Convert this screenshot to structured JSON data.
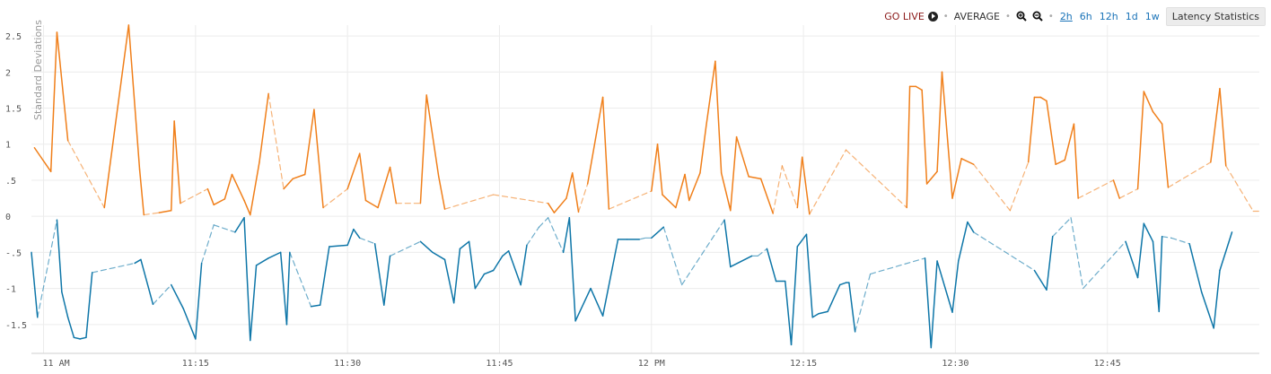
{
  "toolbar": {
    "go_live": "GO LIVE",
    "average": "AVERAGE",
    "ranges": [
      "2h",
      "6h",
      "12h",
      "1d",
      "1w"
    ],
    "active_range": "2h",
    "latency_button": "Latency Statistics"
  },
  "colors": {
    "upper_series": "#f07f1a",
    "lower_series": "#0e76a8",
    "go_live": "#8b1a1a",
    "link": "#1a73b8",
    "grid": "#ececec"
  },
  "chart_data": {
    "type": "line",
    "ylabel": "Standard Deviations",
    "ylim": [
      -1.9,
      2.65
    ],
    "yticks": [
      2.5,
      2,
      1.5,
      1,
      0.5,
      0,
      -0.5,
      -1,
      -1.5
    ],
    "ytick_labels": [
      "2.5",
      "2",
      "1.5",
      "1",
      ".5",
      "0",
      "-.5",
      "-1",
      "-1.5"
    ],
    "xlim": [
      -2,
      200
    ],
    "xticks": [
      0,
      25,
      50,
      75,
      100,
      125,
      150,
      175
    ],
    "xtick_labels": [
      "11 AM",
      "11:15",
      "11:30",
      "11:45",
      "12 PM",
      "12:15",
      "12:30",
      "12:45"
    ],
    "grid": true,
    "series": [
      {
        "color": "#f07f1a",
        "points": [
          [
            -1.5,
            0.95,
            "d"
          ],
          [
            1.2,
            0.62,
            "s"
          ],
          [
            2.2,
            2.55,
            "s"
          ],
          [
            4,
            1.05,
            "s"
          ],
          [
            10,
            0.12,
            "d"
          ],
          [
            11.7,
            1.2,
            "s"
          ],
          [
            14,
            2.65,
            "s"
          ],
          [
            15.8,
            0.65,
            "s"
          ],
          [
            16.5,
            0.02,
            "s"
          ],
          [
            19,
            0.05,
            "d"
          ],
          [
            21,
            0.08,
            "s"
          ],
          [
            21.5,
            1.32,
            "s"
          ],
          [
            22.5,
            0.18,
            "s"
          ],
          [
            27,
            0.38,
            "d"
          ],
          [
            28,
            0.16,
            "s"
          ],
          [
            29.8,
            0.24,
            "s"
          ],
          [
            31,
            0.58,
            "s"
          ],
          [
            33,
            0.22,
            "s"
          ],
          [
            34,
            0.02,
            "s"
          ],
          [
            35.5,
            0.75,
            "s"
          ],
          [
            37,
            1.7,
            "s"
          ],
          [
            39.5,
            0.38,
            "d"
          ],
          [
            41,
            0.52,
            "s"
          ],
          [
            43,
            0.58,
            "s"
          ],
          [
            44.5,
            1.48,
            "s"
          ],
          [
            46,
            0.12,
            "s"
          ],
          [
            50,
            0.38,
            "d"
          ],
          [
            52,
            0.87,
            "s"
          ],
          [
            53,
            0.22,
            "s"
          ],
          [
            55,
            0.12,
            "s"
          ],
          [
            57,
            0.68,
            "s"
          ],
          [
            58,
            0.18,
            "s"
          ],
          [
            62,
            0.18,
            "d"
          ],
          [
            63,
            1.68,
            "s"
          ],
          [
            65,
            0.55,
            "s"
          ],
          [
            66,
            0.1,
            "s"
          ],
          [
            74,
            0.3,
            "d"
          ],
          [
            83,
            0.18,
            "d"
          ],
          [
            84,
            0.05,
            "s"
          ],
          [
            86,
            0.25,
            "s"
          ],
          [
            87,
            0.6,
            "s"
          ],
          [
            88,
            0.06,
            "s"
          ],
          [
            89.5,
            0.45,
            "d"
          ],
          [
            92,
            1.65,
            "s"
          ],
          [
            93,
            0.1,
            "s"
          ],
          [
            100,
            0.35,
            "d"
          ],
          [
            101,
            1.0,
            "s"
          ],
          [
            101.8,
            0.3,
            "s"
          ],
          [
            104,
            0.12,
            "s"
          ],
          [
            105.5,
            0.58,
            "s"
          ],
          [
            106.2,
            0.22,
            "s"
          ],
          [
            108,
            0.6,
            "s"
          ],
          [
            109,
            1.25,
            "s"
          ],
          [
            110.5,
            2.15,
            "s"
          ],
          [
            111.5,
            0.6,
            "s"
          ],
          [
            113,
            0.08,
            "s"
          ],
          [
            114,
            1.1,
            "s"
          ],
          [
            116,
            0.55,
            "s"
          ],
          [
            118,
            0.52,
            "s"
          ],
          [
            120,
            0.04,
            "s"
          ],
          [
            121.5,
            0.7,
            "d"
          ],
          [
            124,
            0.12,
            "d"
          ],
          [
            124.8,
            0.82,
            "s"
          ],
          [
            126,
            0.03,
            "s"
          ],
          [
            132,
            0.92,
            "d"
          ],
          [
            142,
            0.12,
            "d"
          ],
          [
            142.5,
            1.8,
            "s"
          ],
          [
            143.5,
            1.8,
            "s"
          ],
          [
            144.5,
            1.75,
            "s"
          ],
          [
            145.3,
            0.45,
            "s"
          ],
          [
            147,
            0.62,
            "s"
          ],
          [
            147.8,
            2.0,
            "s"
          ],
          [
            149.5,
            0.25,
            "s"
          ],
          [
            151,
            0.8,
            "s"
          ],
          [
            153,
            0.72,
            "s"
          ],
          [
            159,
            0.08,
            "d"
          ],
          [
            162,
            0.75,
            "d"
          ],
          [
            163,
            1.65,
            "s"
          ],
          [
            164,
            1.65,
            "s"
          ],
          [
            165,
            1.6,
            "s"
          ],
          [
            166.5,
            0.72,
            "s"
          ],
          [
            168,
            0.78,
            "s"
          ],
          [
            169.5,
            1.28,
            "s"
          ],
          [
            170.2,
            0.25,
            "s"
          ],
          [
            176,
            0.5,
            "d"
          ],
          [
            177,
            0.25,
            "s"
          ],
          [
            180,
            0.38,
            "d"
          ],
          [
            181,
            1.73,
            "s"
          ],
          [
            182.5,
            1.45,
            "s"
          ],
          [
            184,
            1.28,
            "s"
          ],
          [
            185,
            0.4,
            "s"
          ],
          [
            192,
            0.75,
            "d"
          ],
          [
            193.5,
            1.77,
            "s"
          ],
          [
            194.5,
            0.7,
            "s"
          ],
          [
            199,
            0.07,
            "d"
          ],
          [
            200,
            0.07,
            "d"
          ]
        ]
      },
      {
        "color": "#0e76a8",
        "points": [
          [
            -2,
            -0.5,
            "s"
          ],
          [
            -1,
            -1.4,
            "s"
          ],
          [
            2.2,
            -0.05,
            "d"
          ],
          [
            3,
            -1.05,
            "s"
          ],
          [
            4,
            -1.4,
            "s"
          ],
          [
            5,
            -1.68,
            "s"
          ],
          [
            6,
            -1.7,
            "s"
          ],
          [
            7,
            -1.68,
            "s"
          ],
          [
            8,
            -0.78,
            "s"
          ],
          [
            15,
            -0.65,
            "d"
          ],
          [
            16,
            -0.6,
            "s"
          ],
          [
            18,
            -1.22,
            "s"
          ],
          [
            21,
            -0.95,
            "d"
          ],
          [
            23,
            -1.28,
            "s"
          ],
          [
            25,
            -1.7,
            "s"
          ],
          [
            26,
            -0.65,
            "s"
          ],
          [
            28,
            -0.12,
            "d"
          ],
          [
            31.5,
            -0.22,
            "d"
          ],
          [
            33,
            -0.02,
            "s"
          ],
          [
            34,
            -1.72,
            "s"
          ],
          [
            35,
            -0.68,
            "s"
          ],
          [
            37,
            -0.58,
            "s"
          ],
          [
            39,
            -0.5,
            "s"
          ],
          [
            40,
            -1.5,
            "s"
          ],
          [
            40.5,
            -0.5,
            "s"
          ],
          [
            44,
            -1.25,
            "d"
          ],
          [
            45.5,
            -1.23,
            "s"
          ],
          [
            47,
            -0.42,
            "s"
          ],
          [
            50,
            -0.4,
            "s"
          ],
          [
            51,
            -0.18,
            "s"
          ],
          [
            52,
            -0.3,
            "s"
          ],
          [
            54.5,
            -0.38,
            "d"
          ],
          [
            56,
            -1.23,
            "s"
          ],
          [
            57,
            -0.55,
            "s"
          ],
          [
            62,
            -0.35,
            "d"
          ],
          [
            64,
            -0.5,
            "s"
          ],
          [
            66,
            -0.6,
            "s"
          ],
          [
            67.5,
            -1.2,
            "s"
          ],
          [
            68.5,
            -0.45,
            "s"
          ],
          [
            70,
            -0.35,
            "s"
          ],
          [
            71,
            -1.0,
            "s"
          ],
          [
            72.5,
            -0.8,
            "s"
          ],
          [
            74,
            -0.75,
            "s"
          ],
          [
            75.5,
            -0.55,
            "s"
          ],
          [
            76.5,
            -0.48,
            "s"
          ],
          [
            78.5,
            -0.95,
            "s"
          ],
          [
            79.5,
            -0.4,
            "s"
          ],
          [
            81.5,
            -0.15,
            "d"
          ],
          [
            83,
            -0.02,
            "d"
          ],
          [
            85.5,
            -0.5,
            "d"
          ],
          [
            86.5,
            -0.02,
            "s"
          ],
          [
            87.5,
            -1.45,
            "s"
          ],
          [
            90,
            -1.0,
            "s"
          ],
          [
            92,
            -1.38,
            "s"
          ],
          [
            94.5,
            -0.32,
            "s"
          ],
          [
            96,
            -0.32,
            "s"
          ],
          [
            98,
            -0.32,
            "s"
          ],
          [
            99,
            -0.3,
            "d"
          ],
          [
            100,
            -0.3,
            "d"
          ],
          [
            102,
            -0.15,
            "s"
          ],
          [
            105,
            -0.95,
            "d"
          ],
          [
            112,
            -0.05,
            "d"
          ],
          [
            113,
            -0.7,
            "s"
          ],
          [
            116.5,
            -0.55,
            "s"
          ],
          [
            117.5,
            -0.55,
            "d"
          ],
          [
            119,
            -0.45,
            "d"
          ],
          [
            120.5,
            -0.9,
            "s"
          ],
          [
            122,
            -0.9,
            "s"
          ],
          [
            123,
            -1.78,
            "s"
          ],
          [
            124,
            -0.42,
            "s"
          ],
          [
            125.5,
            -0.25,
            "s"
          ],
          [
            126.5,
            -1.4,
            "s"
          ],
          [
            127.5,
            -1.35,
            "s"
          ],
          [
            129,
            -1.32,
            "s"
          ],
          [
            131,
            -0.95,
            "s"
          ],
          [
            132,
            -0.92,
            "s"
          ],
          [
            132.5,
            -0.92,
            "s"
          ],
          [
            133.5,
            -1.6,
            "s"
          ],
          [
            136,
            -0.8,
            "d"
          ],
          [
            145,
            -0.58,
            "d"
          ],
          [
            146,
            -1.82,
            "s"
          ],
          [
            147,
            -0.62,
            "s"
          ],
          [
            149.5,
            -1.33,
            "s"
          ],
          [
            150.5,
            -0.62,
            "s"
          ],
          [
            152,
            -0.08,
            "s"
          ],
          [
            153,
            -0.22,
            "s"
          ],
          [
            163,
            -0.75,
            "d"
          ],
          [
            165,
            -1.02,
            "s"
          ],
          [
            166,
            -0.28,
            "s"
          ],
          [
            169,
            -0.02,
            "d"
          ],
          [
            171,
            -1.0,
            "d"
          ],
          [
            178,
            -0.35,
            "d"
          ],
          [
            180,
            -0.85,
            "s"
          ],
          [
            181,
            -0.1,
            "s"
          ],
          [
            182.5,
            -0.35,
            "s"
          ],
          [
            183.5,
            -1.32,
            "s"
          ],
          [
            184,
            -0.28,
            "s"
          ],
          [
            185.5,
            -0.3,
            "d"
          ],
          [
            188.5,
            -0.38,
            "d"
          ],
          [
            190.5,
            -1.05,
            "s"
          ],
          [
            192.5,
            -1.55,
            "s"
          ],
          [
            193.5,
            -0.75,
            "s"
          ],
          [
            195.5,
            -0.22,
            "s"
          ]
        ]
      }
    ]
  }
}
